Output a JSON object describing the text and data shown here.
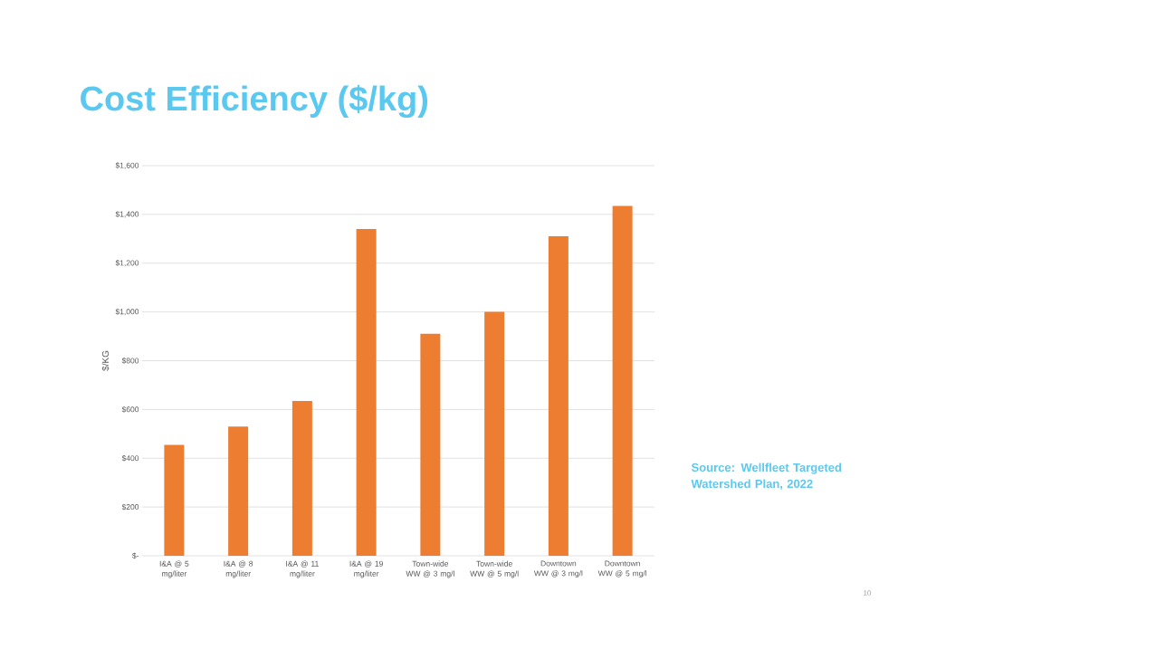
{
  "chart_data": {
    "type": "bar",
    "title": "Cost Efficiency ($/kg)",
    "ylabel": "$/KG",
    "categories": [
      "I&A @ 5 mg/liter",
      "I&A @ 8 mg/liter",
      "I&A @ 11 mg/liter",
      "I&A @ 19 mg/liter",
      "Town-wide WW @ 3 mg/l",
      "Town-wide WW @ 5 mg/l",
      "Downtown WW @ 3 mg/l",
      "Downtown WW @ 5 mg/l"
    ],
    "values": [
      455,
      530,
      635,
      1340,
      910,
      1000,
      1310,
      1435
    ],
    "color": "#ed7d31",
    "ylim": [
      0,
      1600
    ],
    "yticks": [
      {
        "value": 0,
        "label": "$-"
      },
      {
        "value": 200,
        "label": "$200"
      },
      {
        "value": 400,
        "label": "$400"
      },
      {
        "value": 600,
        "label": "$600"
      },
      {
        "value": 800,
        "label": "$800"
      },
      {
        "value": 1000,
        "label": "$1,000"
      },
      {
        "value": 1200,
        "label": "$1,200"
      },
      {
        "value": 1400,
        "label": "$1,400"
      },
      {
        "value": 1600,
        "label": "$1,600"
      }
    ],
    "grid": "y",
    "annotations": [
      "Source: Wellfleet Targeted Watershed Plan, 2022",
      "10"
    ]
  }
}
